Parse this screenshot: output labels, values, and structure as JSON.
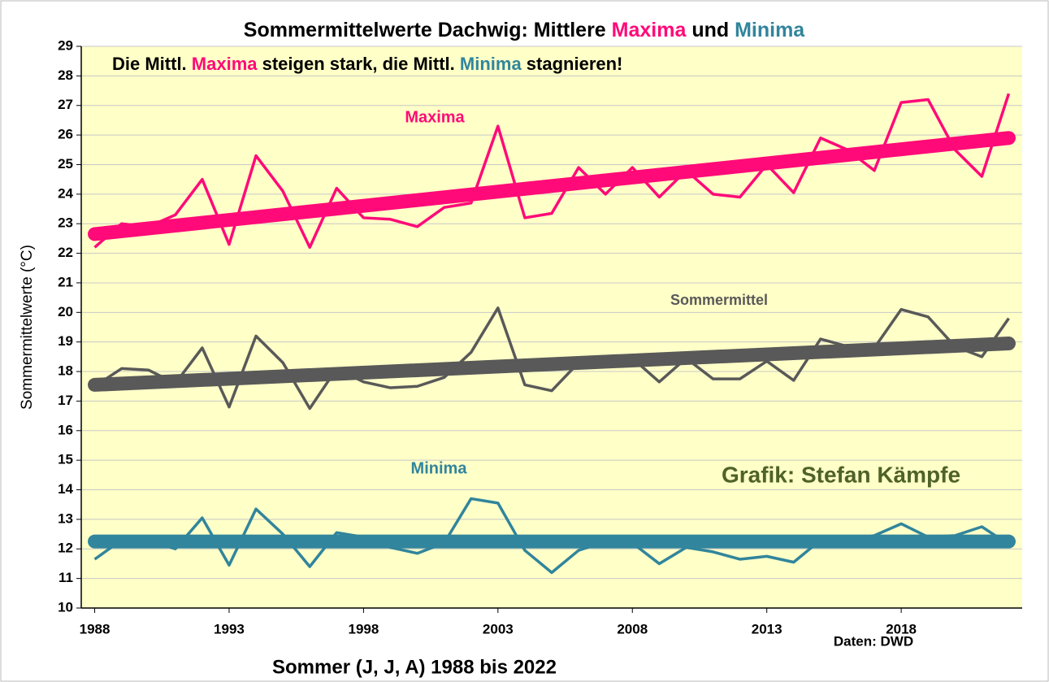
{
  "chart_data": {
    "type": "line",
    "title_parts": [
      {
        "text": "Sommermittelwerte Dachwig: Mittlere ",
        "color": "#000000"
      },
      {
        "text": "Maxima",
        "color": "#ff0a78"
      },
      {
        "text": " und ",
        "color": "#000000"
      },
      {
        "text": "Minima",
        "color": "#31859c"
      }
    ],
    "subtitle_parts": [
      {
        "text": "Die Mittl. ",
        "color": "#000000"
      },
      {
        "text": "Maxima",
        "color": "#ff0a78"
      },
      {
        "text": " steigen stark, die Mittl. ",
        "color": "#000000"
      },
      {
        "text": "Minima",
        "color": "#31859c"
      },
      {
        "text": " stagnieren!",
        "color": "#000000"
      }
    ],
    "xlabel": "Sommer (J, J, A) 1988 bis 2022",
    "ylabel": "Sommermittelwerte (°C)",
    "annotations": [
      {
        "text": "Maxima",
        "color": "#ff0a78"
      },
      {
        "text": "Sommermittel",
        "color": "#595959"
      },
      {
        "text": "Minima",
        "color": "#31859c"
      },
      {
        "text": "Grafik: Stefan Kämpfe",
        "color": "#4f6228"
      },
      {
        "text": "Daten: DWD",
        "color": "#000000"
      }
    ],
    "x": [
      1988,
      1989,
      1990,
      1991,
      1992,
      1993,
      1994,
      1995,
      1996,
      1997,
      1998,
      1999,
      2000,
      2001,
      2002,
      2003,
      2004,
      2005,
      2006,
      2007,
      2008,
      2009,
      2010,
      2011,
      2012,
      2013,
      2014,
      2015,
      2016,
      2017,
      2018,
      2019,
      2020,
      2021,
      2022
    ],
    "trend_x": [
      1988,
      2022
    ],
    "series": [
      {
        "name": "Maxima",
        "color": "#ff0a78",
        "values": [
          22.2,
          23.0,
          22.9,
          23.3,
          24.5,
          22.3,
          25.3,
          24.1,
          22.2,
          24.2,
          23.2,
          23.15,
          22.9,
          23.55,
          23.7,
          26.3,
          23.2,
          23.35,
          24.9,
          24.0,
          24.9,
          23.9,
          24.8,
          24.0,
          23.9,
          25.0,
          24.05,
          25.9,
          25.5,
          24.8,
          27.1,
          27.2,
          25.5,
          24.6,
          27.4
        ],
        "trend": [
          22.65,
          25.9
        ]
      },
      {
        "name": "Sommermittel",
        "color": "#595959",
        "values": [
          17.5,
          18.1,
          18.05,
          17.6,
          18.8,
          16.8,
          19.2,
          18.3,
          16.75,
          18.1,
          17.65,
          17.45,
          17.5,
          17.8,
          18.65,
          20.15,
          17.55,
          17.35,
          18.3,
          18.2,
          18.45,
          17.65,
          18.45,
          17.75,
          17.75,
          18.35,
          17.7,
          19.1,
          18.85,
          18.8,
          20.1,
          19.85,
          18.85,
          18.5,
          19.8
        ],
        "trend": [
          17.55,
          18.95
        ]
      },
      {
        "name": "Minima",
        "color": "#31859c",
        "values": [
          11.65,
          12.3,
          12.3,
          12.0,
          13.05,
          11.45,
          13.35,
          12.5,
          11.4,
          12.55,
          12.4,
          12.05,
          11.85,
          12.2,
          13.7,
          13.55,
          11.95,
          11.2,
          11.95,
          12.25,
          12.2,
          11.5,
          12.05,
          11.9,
          11.65,
          11.75,
          11.55,
          12.3,
          12.3,
          12.45,
          12.85,
          12.4,
          12.45,
          12.75,
          12.15
        ],
        "trend": [
          12.25,
          12.25
        ]
      }
    ],
    "xlim": [
      1987.5,
      2022.5
    ],
    "xticks": [
      1988,
      1993,
      1998,
      2003,
      2008,
      2013,
      2018
    ],
    "ylim": [
      10,
      29
    ],
    "yticks": [
      10,
      11,
      12,
      13,
      14,
      15,
      16,
      17,
      18,
      19,
      20,
      21,
      22,
      23,
      24,
      25,
      26,
      27,
      28,
      29
    ],
    "grid": true,
    "plot_background": "#ffffc8"
  }
}
